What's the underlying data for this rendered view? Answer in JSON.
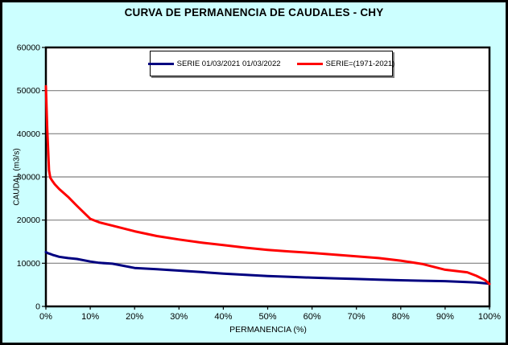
{
  "title": "CURVA DE PERMANENCIA DE CAUDALES - CHY",
  "colors": {
    "background": "#CCFFFF",
    "plot_background": "#FFFFFF",
    "grid": "#808080",
    "axis": "#000000",
    "series_blue": "#000080",
    "series_red": "#FF0000"
  },
  "legend": {
    "items": [
      {
        "label": "SERIE 01/03/2021 01/03/2022",
        "color": "#000080"
      },
      {
        "label": "SERIE=(1971-2021)",
        "color": "#FF0000"
      }
    ]
  },
  "chart_data": {
    "type": "line",
    "title": "CURVA DE PERMANENCIA DE CAUDALES - CHY",
    "xlabel": "PERMANENCIA (%)",
    "ylabel": "CAUDAL (m3/s)",
    "xlim": [
      0,
      100
    ],
    "ylim": [
      0,
      60000
    ],
    "x_ticks": [
      "0%",
      "10%",
      "20%",
      "30%",
      "40%",
      "50%",
      "60%",
      "70%",
      "80%",
      "90%",
      "100%"
    ],
    "y_ticks": [
      "0",
      "10000",
      "20000",
      "30000",
      "40000",
      "50000",
      "60000"
    ],
    "grid": "horizontal-only",
    "legend_position": "top-center",
    "x": [
      0,
      0.3,
      0.7,
      1,
      1.5,
      2,
      3,
      4,
      5,
      7,
      10,
      12,
      15,
      20,
      25,
      30,
      35,
      40,
      45,
      50,
      55,
      60,
      65,
      70,
      75,
      80,
      85,
      90,
      95,
      97,
      99,
      100
    ],
    "series": [
      {
        "name": "SERIE 01/03/2021 01/03/2022",
        "color": "#000080",
        "values": [
          12600,
          12400,
          12250,
          12150,
          11950,
          11800,
          11500,
          11350,
          11200,
          11000,
          10400,
          10100,
          9900,
          8900,
          8600,
          8300,
          7950,
          7600,
          7300,
          7050,
          6850,
          6650,
          6500,
          6350,
          6200,
          6050,
          5950,
          5850,
          5650,
          5550,
          5350,
          5250
        ]
      },
      {
        "name": "SERIE=(1971-2021)",
        "color": "#FF0000",
        "values": [
          51000,
          41000,
          31500,
          29800,
          29000,
          28300,
          27200,
          26300,
          25400,
          23300,
          20300,
          19500,
          18700,
          17400,
          16300,
          15500,
          14800,
          14200,
          13600,
          13100,
          12700,
          12400,
          12000,
          11600,
          11200,
          10600,
          9800,
          8500,
          7900,
          7100,
          6100,
          5200
        ]
      }
    ]
  }
}
